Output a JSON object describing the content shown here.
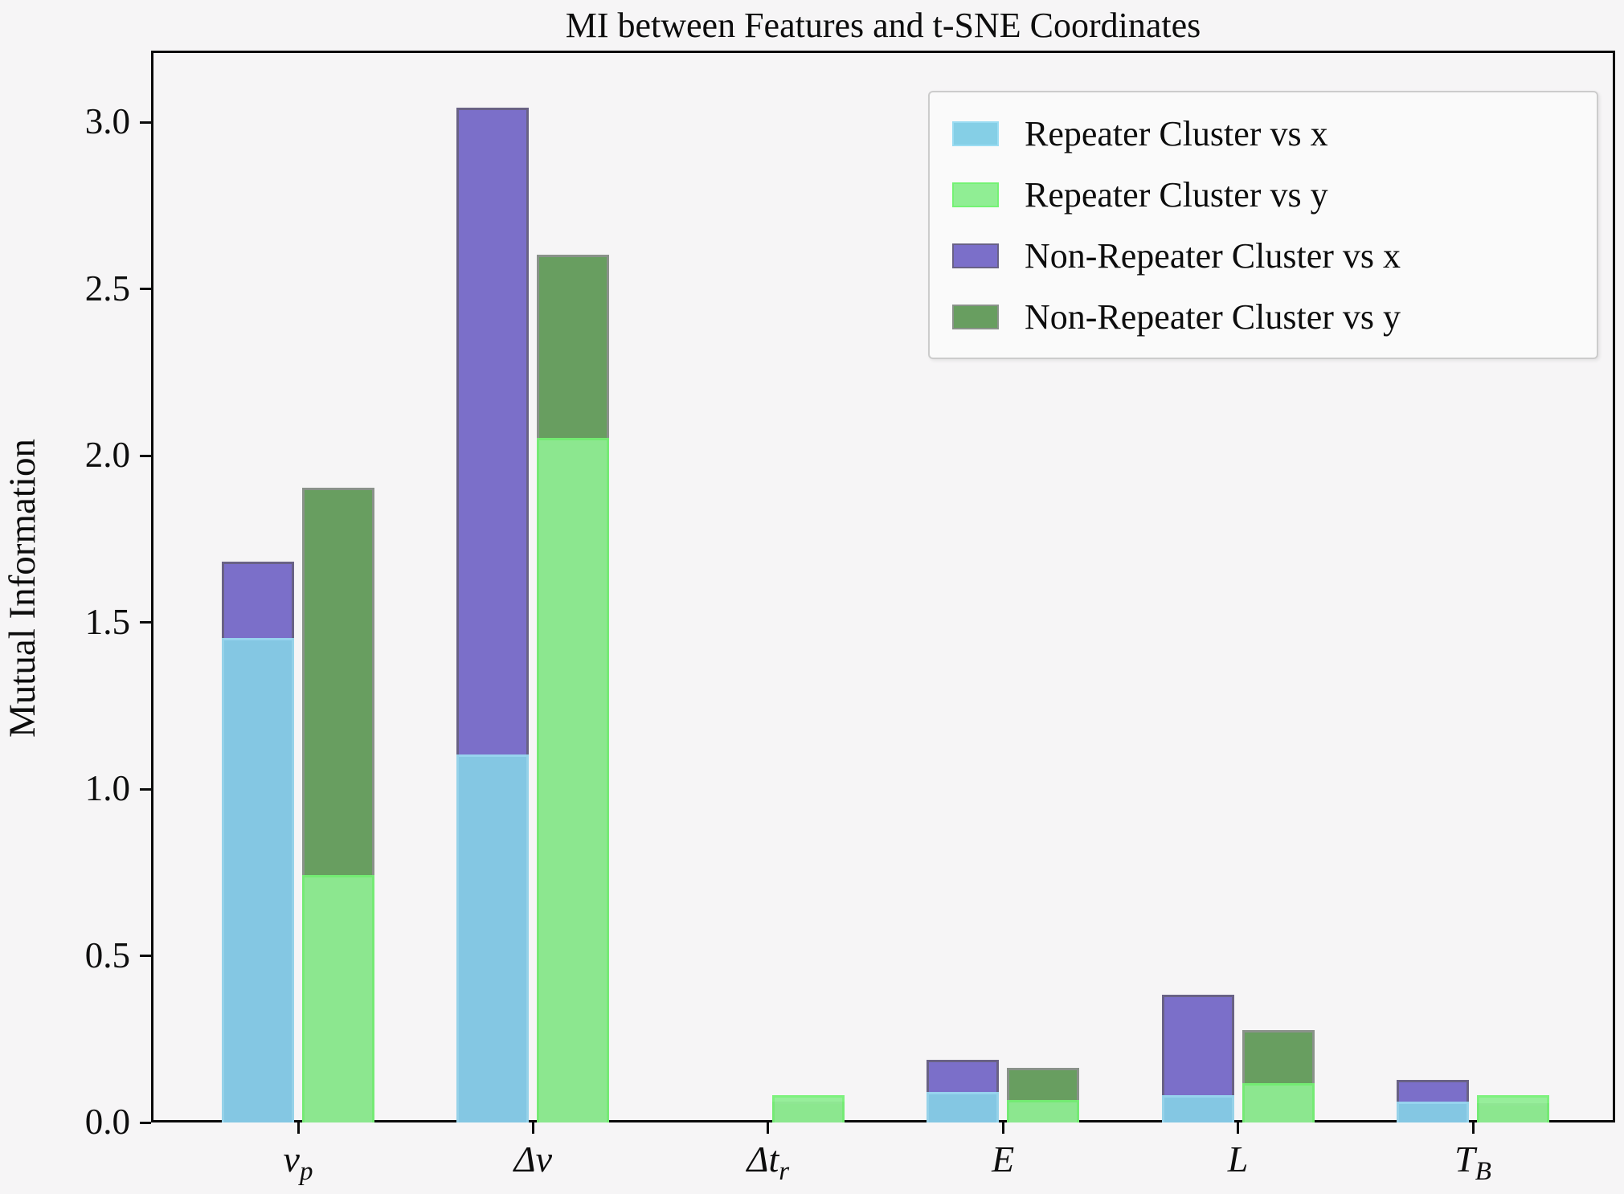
{
  "title": "MI between Features and t-SNE Coordinates",
  "ylabel": "Mutual Information",
  "chart_data": {
    "type": "bar",
    "categories": [
      {
        "base": "ν",
        "sub": "p"
      },
      {
        "base": "Δν",
        "sub": ""
      },
      {
        "base": "Δt",
        "sub": "r"
      },
      {
        "base": "E",
        "sub": ""
      },
      {
        "base": "L",
        "sub": ""
      },
      {
        "base": "T",
        "sub": "B"
      }
    ],
    "series": [
      {
        "name": "Repeater Cluster vs x",
        "color": "#85cfe6",
        "edge": "#9adcf2",
        "slot": "x",
        "layer": "front",
        "values": [
          1.46,
          1.11,
          0.0,
          0.1,
          0.09,
          0.07
        ]
      },
      {
        "name": "Repeater Cluster vs y",
        "color": "#90ee94",
        "edge": "#74f274",
        "slot": "y",
        "layer": "front",
        "values": [
          0.75,
          2.06,
          0.09,
          0.075,
          0.125,
          0.09
        ]
      },
      {
        "name": "Non-Repeater Cluster vs x",
        "color": "#7b6fc9",
        "edge": "#696285",
        "slot": "x",
        "layer": "back",
        "values": [
          1.69,
          3.05,
          0.0,
          0.195,
          0.39,
          0.135
        ]
      },
      {
        "name": "Non-Repeater Cluster vs y",
        "color": "#689e60",
        "edge": "#8a928a",
        "slot": "y",
        "layer": "back",
        "values": [
          1.91,
          2.61,
          0.07,
          0.17,
          0.285,
          0.065
        ]
      }
    ],
    "ylabel": "Mutual Information",
    "xlabel": "",
    "ylim": [
      0.0,
      3.22
    ],
    "yticks": [
      0.0,
      0.5,
      1.0,
      1.5,
      2.0,
      2.5,
      3.0
    ],
    "ytick_labels": [
      "0.0",
      "0.5",
      "1.0",
      "1.5",
      "2.0",
      "2.5",
      "3.0"
    ],
    "grid": false,
    "legend_position": "upper right"
  }
}
